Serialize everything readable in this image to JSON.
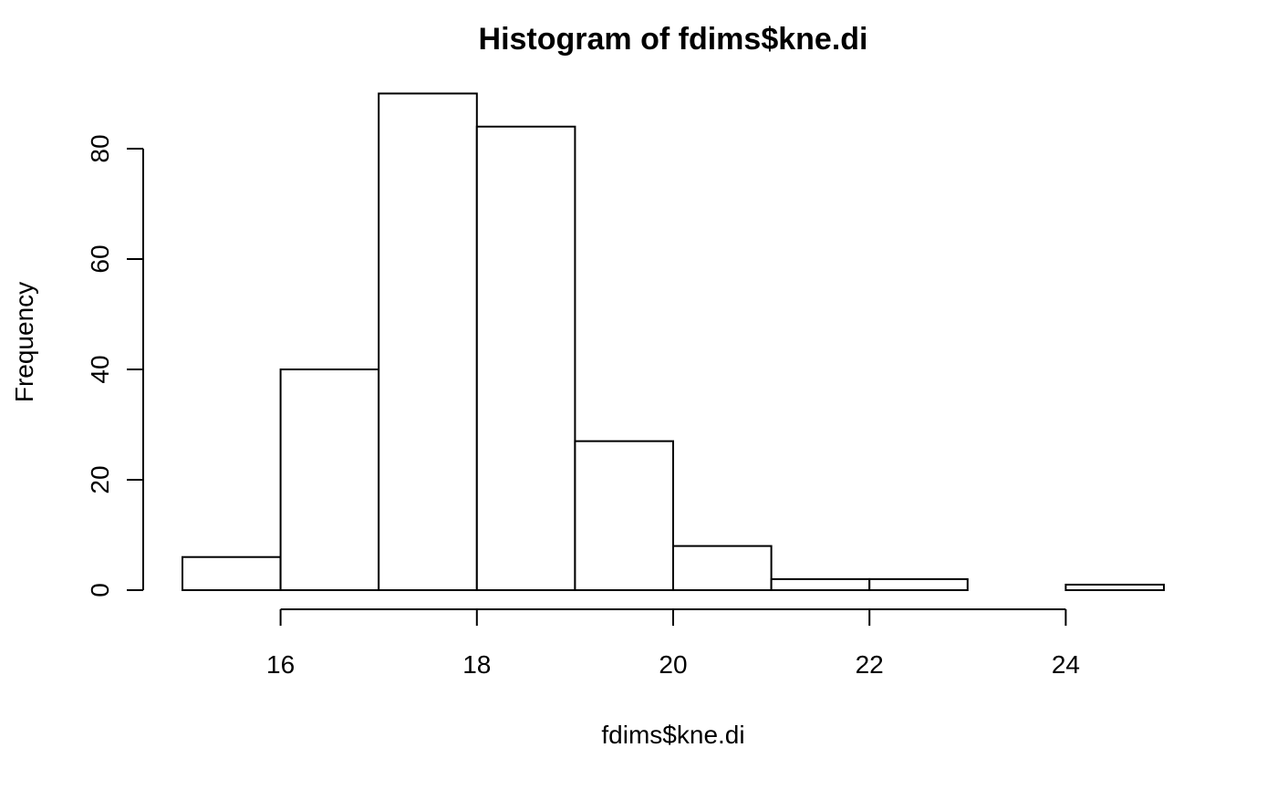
{
  "chart_data": {
    "type": "bar",
    "histogram": true,
    "title": "Histogram of fdims$kne.di",
    "xlabel": "fdims$kne.di",
    "ylabel": "Frequency",
    "bin_edges": [
      15,
      16,
      17,
      18,
      19,
      20,
      21,
      22,
      23,
      24,
      25
    ],
    "values": [
      6,
      40,
      90,
      84,
      27,
      8,
      2,
      2,
      0,
      1
    ],
    "x_ticks": [
      16,
      18,
      20,
      22,
      24
    ],
    "y_ticks": [
      0,
      20,
      40,
      60,
      80
    ],
    "xlim": [
      15,
      25
    ],
    "ylim": [
      0,
      90
    ],
    "grid": false,
    "legend": "none",
    "bar_fill": "#ffffff",
    "bar_stroke": "#000000"
  }
}
